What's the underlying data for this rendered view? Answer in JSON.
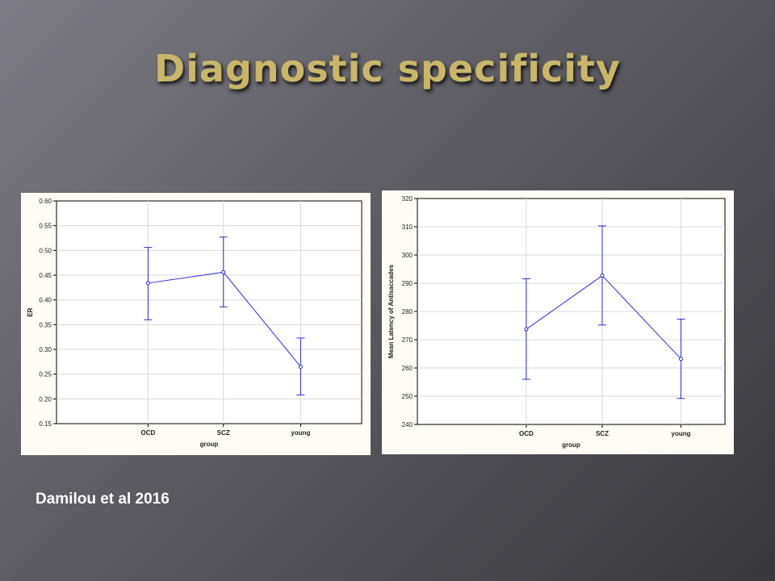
{
  "slide": {
    "title": "Diagnostic specificity",
    "citation": "Damilou et al 2016"
  },
  "colors": {
    "title": "#c9b66a",
    "series": "#2b2bd6",
    "grid": "#d8d8d8",
    "panel": "#fefcf5"
  },
  "chart_data": [
    {
      "type": "line",
      "error_bars": true,
      "categories": [
        "OCD",
        "SCZ",
        "young"
      ],
      "series": [
        {
          "values": [
            0.434,
            0.456,
            0.265
          ],
          "lower": [
            0.36,
            0.386,
            0.208
          ],
          "upper": [
            0.506,
            0.527,
            0.323
          ]
        }
      ],
      "xlabel": "group",
      "ylabel": "ER",
      "ylim": [
        0.15,
        0.6
      ],
      "yticks": [
        "0.60",
        "0.55",
        "0.50",
        "0.45",
        "0.40",
        "0.35",
        "0.30",
        "0.25",
        "0.20",
        "0.15"
      ],
      "grid": true
    },
    {
      "type": "line",
      "error_bars": true,
      "categories": [
        "OCD",
        "SCZ",
        "young"
      ],
      "series": [
        {
          "values": [
            273.7,
            292.7,
            263.2
          ],
          "lower": [
            256.0,
            275.2,
            249.2
          ],
          "upper": [
            291.6,
            310.3,
            277.3
          ]
        }
      ],
      "xlabel": "group",
      "ylabel": "Mean Latency of Antisaccades",
      "ylim": [
        240,
        320
      ],
      "yticks": [
        "320",
        "310",
        "300",
        "290",
        "280",
        "270",
        "260",
        "250",
        "240"
      ],
      "grid": true
    }
  ]
}
